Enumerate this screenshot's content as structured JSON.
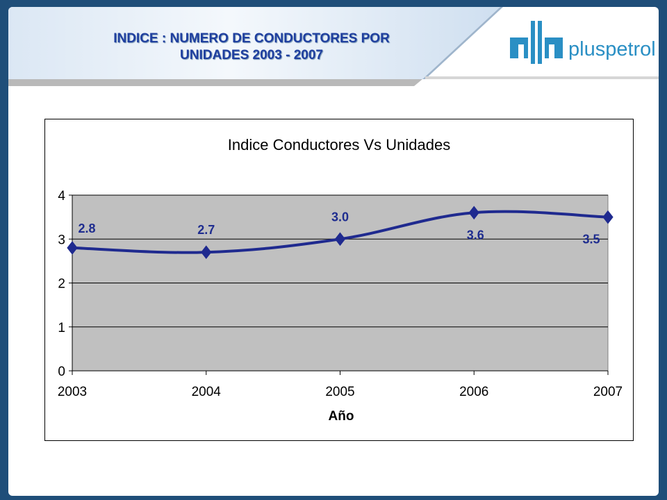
{
  "slide": {
    "title_line1": "INDICE : NUMERO DE CONDUCTORES POR",
    "title_line2": "UNIDADES 2003 - 2007",
    "logo_text": "pluspetrol"
  },
  "colors": {
    "frame": "#1f4e79",
    "title": "#1f3f9f",
    "series": "#1f2a8f",
    "plot_bg": "#c0c0c0"
  },
  "chart_data": {
    "type": "line",
    "title": "Indice Conductores Vs Unidades",
    "xlabel": "Año",
    "ylabel": "",
    "categories": [
      "2003",
      "2004",
      "2005",
      "2006",
      "2007"
    ],
    "series": [
      {
        "values": [
          2.8,
          2.7,
          3.0,
          3.6,
          3.5
        ],
        "labels": [
          "2.8",
          "2.7",
          "3.0",
          "3.6",
          "3.5"
        ]
      }
    ],
    "ylim": [
      0,
      4
    ],
    "yticks": [
      "0",
      "1",
      "2",
      "3",
      "4"
    ],
    "grid": true,
    "legend": "none",
    "marker": "diamond",
    "smooth": true
  }
}
